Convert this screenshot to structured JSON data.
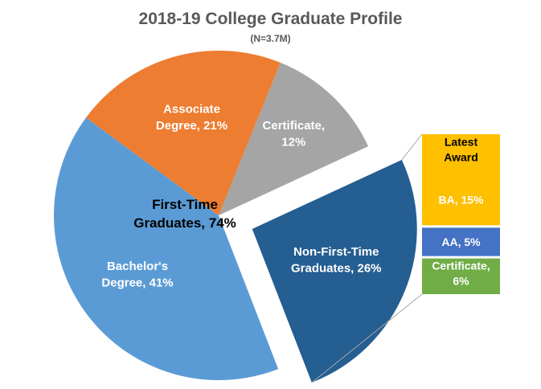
{
  "title": "2018-19 College Graduate Profile",
  "subtitle": "(N=3.7M)",
  "chart_data": {
    "type": "bar-of-pie",
    "title": "2018-19 College Graduate Profile",
    "subtitle": "(N=3.7M)",
    "pie": {
      "slices": [
        {
          "key": "certificate",
          "line1": "Certificate,",
          "line2": "12%",
          "value": 12,
          "color": "#a5a5a5",
          "text_color": "#ffffff"
        },
        {
          "key": "non_first_time",
          "line1": "Non-First-Time",
          "line2": "Graduates, 26%",
          "value": 26,
          "color": "#255e91",
          "text_color": "#ffffff"
        },
        {
          "key": "bachelors",
          "line1": "Bachelor's",
          "line2": "Degree, 41%",
          "value": 41,
          "color": "#5b9bd5",
          "text_color": "#ffffff"
        },
        {
          "key": "associate",
          "line1": "Associate",
          "line2": "Degree, 21%",
          "value": 21,
          "color": "#ed7d31",
          "text_color": "#ffffff"
        }
      ],
      "group_label": {
        "line1": "First-Time",
        "line2": "Graduates, 74%",
        "value": 74,
        "text_color": "#000000"
      }
    },
    "bar": {
      "header": {
        "line1": "Latest",
        "line2": "Award",
        "text_color": "#000000"
      },
      "segments": [
        {
          "key": "ba",
          "line1": "BA, 15%",
          "line2": "",
          "value": 15,
          "color": "#ffc000",
          "text_color": "#ffffff"
        },
        {
          "key": "aa",
          "line1": "AA, 5%",
          "line2": "",
          "value": 5,
          "color": "#4472c4",
          "text_color": "#ffffff"
        },
        {
          "key": "cert",
          "line1": "Certificate,",
          "line2": "6%",
          "value": 6,
          "color": "#70ad47",
          "text_color": "#ffffff"
        }
      ]
    },
    "connector_color": "#a6a6a6"
  }
}
